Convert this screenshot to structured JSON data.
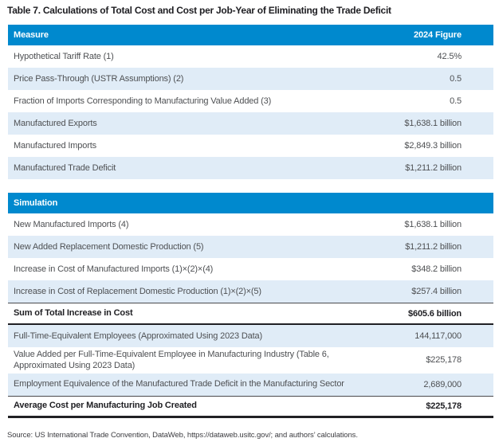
{
  "title": "Table 7. Calculations of Total Cost and Cost per Job-Year of Eliminating the Trade Deficit",
  "colors": {
    "header_bg": "#0089CE",
    "row_shaded_bg": "#E0ECF7",
    "rule_dark": "#202024",
    "title_ink": "#1E1E22",
    "body_ink": "#4E5053"
  },
  "tables": [
    {
      "name": "measure",
      "header": {
        "measure": "Measure",
        "figure": "2024 Figure"
      },
      "rows": [
        {
          "label": "Hypothetical Tariff Rate (1)",
          "value": "42.5%",
          "shaded": false,
          "total": false
        },
        {
          "label": "Price Pass-Through (USTR Assumptions) (2)",
          "value": "0.5",
          "shaded": true,
          "total": false
        },
        {
          "label": "Fraction of Imports Corresponding to Manufacturing Value Added (3)",
          "value": "0.5",
          "shaded": false,
          "total": false
        },
        {
          "label": "Manufactured Exports",
          "value": "$1,638.1 billion",
          "shaded": true,
          "total": false
        },
        {
          "label": "Manufactured Imports",
          "value": "$2,849.3 billion",
          "shaded": false,
          "total": false
        },
        {
          "label": "Manufactured Trade Deficit",
          "value": "$1,211.2 billion",
          "shaded": true,
          "total": false
        }
      ]
    },
    {
      "name": "simulation",
      "header": {
        "measure": "Simulation",
        "figure": ""
      },
      "rows": [
        {
          "label": "New Manufactured Imports (4)",
          "value": "$1,638.1 billion",
          "shaded": false,
          "total": false
        },
        {
          "label": "New Added Replacement Domestic Production (5)",
          "value": "$1,211.2 billion",
          "shaded": true,
          "total": false
        },
        {
          "label": "Increase in Cost of Manufactured Imports (1)×(2)×(4)",
          "value": "$348.2 billion",
          "shaded": false,
          "total": false
        },
        {
          "label": "Increase in Cost of Replacement Domestic Production (1)×(2)×(5)",
          "value": "$257.4 billion",
          "shaded": true,
          "total": false
        },
        {
          "label": "Sum of Total Increase in Cost",
          "value": "$605.6 billion",
          "shaded": false,
          "total": true
        },
        {
          "label": "Full-Time-Equivalent Employees (Approximated Using 2023 Data)",
          "value": "144,117,000",
          "shaded": true,
          "total": false
        },
        {
          "label": "Value Added per Full-Time-Equivalent Employee in Manufacturing Industry (Table 6, Approximated Using 2023 Data)",
          "value": "$225,178",
          "shaded": false,
          "total": false
        },
        {
          "label": "Employment Equivalence of the Manufactured Trade Deficit in the Manufacturing Sector",
          "value": "2,689,000",
          "shaded": true,
          "total": false
        },
        {
          "label": "Average Cost per Manufacturing Job Created",
          "value": "$225,178",
          "shaded": false,
          "total": true,
          "final": true
        }
      ]
    }
  ],
  "source": "Source: US International Trade Convention, DataWeb, https://dataweb.usitc.gov/; and authors’ calculations."
}
